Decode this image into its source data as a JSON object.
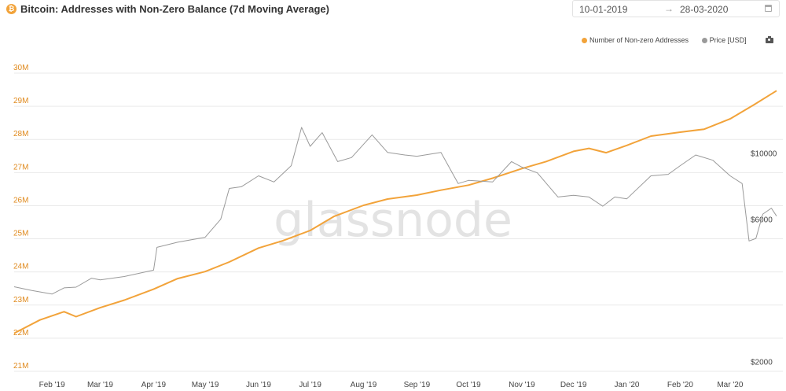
{
  "header": {
    "icon_glyph": "₿",
    "title": "Bitcoin: Addresses with Non-Zero Balance (7d Moving Average)",
    "date_start": "10-01-2019",
    "date_arrow": "→",
    "date_end": "28-03-2020",
    "calendar_icon": "calendar-icon"
  },
  "legend": {
    "series1_label": "Number of Non-zero Addresses",
    "series2_label": "Price [USD]",
    "camera_icon": "camera-icon"
  },
  "watermark": "glassnode",
  "colors": {
    "addresses": "#f2a33a",
    "price": "#9a9a9a",
    "grid": "#e9e9e9"
  },
  "chart_data": {
    "type": "line",
    "x_axis": {
      "range": [
        "2019-01-10",
        "2020-03-28"
      ],
      "tick_labels": [
        "Feb '19",
        "Mar '19",
        "Apr '19",
        "May '19",
        "Jun '19",
        "Jul '19",
        "Aug '19",
        "Sep '19",
        "Oct '19",
        "Nov '19",
        "Dec '19",
        "Jan '20",
        "Feb '20",
        "Mar '20"
      ],
      "tick_dates": [
        "2019-02-01",
        "2019-03-01",
        "2019-04-01",
        "2019-05-01",
        "2019-06-01",
        "2019-07-01",
        "2019-08-01",
        "2019-09-01",
        "2019-10-01",
        "2019-11-01",
        "2019-12-01",
        "2020-01-01",
        "2020-02-01",
        "2020-03-01"
      ]
    },
    "y_left": {
      "ylim": [
        21000000,
        30000000
      ],
      "tick_values": [
        21000000,
        22000000,
        23000000,
        24000000,
        25000000,
        26000000,
        27000000,
        28000000,
        29000000,
        30000000
      ],
      "tick_labels": [
        "21M",
        "22M",
        "23M",
        "24M",
        "25M",
        "26M",
        "27M",
        "28M",
        "29M",
        "30M"
      ]
    },
    "y_right": {
      "scale": "log",
      "ylim": [
        1900,
        19000
      ],
      "tick_values": [
        2000,
        6000,
        10000
      ],
      "tick_labels": [
        "$2000",
        "$6000",
        "$10000"
      ]
    },
    "grid": true,
    "legend_position": "top-right",
    "series": [
      {
        "name": "Number of Non-zero Addresses",
        "axis": "left",
        "x": [
          "2019-01-10",
          "2019-01-25",
          "2019-02-08",
          "2019-02-15",
          "2019-03-01",
          "2019-03-15",
          "2019-04-01",
          "2019-04-15",
          "2019-05-01",
          "2019-05-15",
          "2019-06-01",
          "2019-06-15",
          "2019-07-01",
          "2019-07-15",
          "2019-08-01",
          "2019-08-15",
          "2019-09-01",
          "2019-09-15",
          "2019-10-01",
          "2019-10-15",
          "2019-11-01",
          "2019-11-15",
          "2019-12-01",
          "2019-12-10",
          "2019-12-20",
          "2020-01-01",
          "2020-01-15",
          "2020-02-01",
          "2020-02-15",
          "2020-03-01",
          "2020-03-15",
          "2020-03-28"
        ],
        "values": [
          22150000,
          22550000,
          22800000,
          22650000,
          22920000,
          23150000,
          23480000,
          23800000,
          24010000,
          24300000,
          24720000,
          24940000,
          25250000,
          25680000,
          26010000,
          26200000,
          26320000,
          26470000,
          26620000,
          26830000,
          27120000,
          27330000,
          27640000,
          27730000,
          27600000,
          27820000,
          28100000,
          28220000,
          28310000,
          28620000,
          29050000,
          29470000
        ]
      },
      {
        "name": "Price [USD]",
        "axis": "right",
        "x": [
          "2019-01-10",
          "2019-01-20",
          "2019-02-01",
          "2019-02-08",
          "2019-02-15",
          "2019-02-24",
          "2019-03-01",
          "2019-03-15",
          "2019-04-01",
          "2019-04-03",
          "2019-04-15",
          "2019-05-01",
          "2019-05-10",
          "2019-05-15",
          "2019-05-22",
          "2019-06-01",
          "2019-06-10",
          "2019-06-20",
          "2019-06-26",
          "2019-07-01",
          "2019-07-08",
          "2019-07-17",
          "2019-07-25",
          "2019-08-06",
          "2019-08-15",
          "2019-08-25",
          "2019-09-01",
          "2019-09-15",
          "2019-09-25",
          "2019-10-01",
          "2019-10-15",
          "2019-10-26",
          "2019-11-01",
          "2019-11-10",
          "2019-11-22",
          "2019-12-01",
          "2019-12-10",
          "2019-12-18",
          "2019-12-25",
          "2020-01-01",
          "2020-01-15",
          "2020-01-25",
          "2020-02-01",
          "2020-02-10",
          "2020-02-20",
          "2020-03-01",
          "2020-03-08",
          "2020-03-12",
          "2020-03-16",
          "2020-03-20",
          "2020-03-25",
          "2020-03-28"
        ],
        "values": [
          3650,
          3550,
          3450,
          3620,
          3640,
          3900,
          3850,
          3950,
          4150,
          4950,
          5150,
          5350,
          6150,
          7800,
          7900,
          8600,
          8200,
          9300,
          12500,
          10800,
          12000,
          9600,
          9900,
          11800,
          10300,
          10100,
          10000,
          10300,
          8100,
          8300,
          8200,
          9600,
          9200,
          8800,
          7300,
          7400,
          7300,
          6800,
          7300,
          7200,
          8600,
          8700,
          9300,
          10100,
          9700,
          8600,
          8100,
          5200,
          5300,
          6400,
          6700,
          6300
        ]
      }
    ]
  }
}
